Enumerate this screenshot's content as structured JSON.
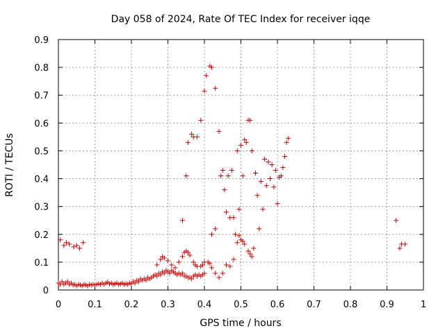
{
  "chart_data": {
    "type": "scatter",
    "title": "Day 058 of 2024, Rate Of TEC Index for receiver iqqe",
    "xlabel": "GPS time / hours",
    "ylabel": "ROTI / TECUs",
    "xlim": [
      0,
      1
    ],
    "ylim": [
      0,
      0.9
    ],
    "xticks": [
      "0",
      "0.1",
      "0.2",
      "0.3",
      "0.4",
      "0.5",
      "0.6",
      "0.7",
      "0.8",
      "0.9",
      "1"
    ],
    "yticks": [
      "0",
      "0.1",
      "0.2",
      "0.3",
      "0.4",
      "0.5",
      "0.6",
      "0.7",
      "0.8",
      "0.9"
    ],
    "grid": true,
    "marker": "+",
    "color": "#cc0000",
    "series": [
      {
        "name": "ROTI",
        "points": [
          [
            0.005,
            0.18
          ],
          [
            0.015,
            0.16
          ],
          [
            0.022,
            0.17
          ],
          [
            0.03,
            0.165
          ],
          [
            0.042,
            0.155
          ],
          [
            0.05,
            0.16
          ],
          [
            0.058,
            0.15
          ],
          [
            0.068,
            0.17
          ],
          [
            0.0,
            0.025
          ],
          [
            0.005,
            0.02
          ],
          [
            0.01,
            0.03
          ],
          [
            0.015,
            0.02
          ],
          [
            0.02,
            0.025
          ],
          [
            0.025,
            0.03
          ],
          [
            0.03,
            0.02
          ],
          [
            0.035,
            0.025
          ],
          [
            0.04,
            0.018
          ],
          [
            0.045,
            0.02
          ],
          [
            0.05,
            0.015
          ],
          [
            0.055,
            0.02
          ],
          [
            0.06,
            0.018
          ],
          [
            0.065,
            0.015
          ],
          [
            0.07,
            0.02
          ],
          [
            0.075,
            0.018
          ],
          [
            0.08,
            0.015
          ],
          [
            0.085,
            0.02
          ],
          [
            0.09,
            0.018
          ],
          [
            0.095,
            0.02
          ],
          [
            0.1,
            0.018
          ],
          [
            0.105,
            0.02
          ],
          [
            0.11,
            0.022
          ],
          [
            0.115,
            0.02
          ],
          [
            0.12,
            0.025
          ],
          [
            0.125,
            0.02
          ],
          [
            0.13,
            0.025
          ],
          [
            0.135,
            0.028
          ],
          [
            0.14,
            0.022
          ],
          [
            0.145,
            0.025
          ],
          [
            0.15,
            0.02
          ],
          [
            0.155,
            0.022
          ],
          [
            0.16,
            0.025
          ],
          [
            0.165,
            0.02
          ],
          [
            0.17,
            0.022
          ],
          [
            0.175,
            0.025
          ],
          [
            0.18,
            0.02
          ],
          [
            0.185,
            0.022
          ],
          [
            0.19,
            0.02
          ],
          [
            0.195,
            0.025
          ],
          [
            0.2,
            0.022
          ],
          [
            0.205,
            0.03
          ],
          [
            0.21,
            0.025
          ],
          [
            0.215,
            0.035
          ],
          [
            0.22,
            0.03
          ],
          [
            0.225,
            0.04
          ],
          [
            0.23,
            0.035
          ],
          [
            0.235,
            0.04
          ],
          [
            0.24,
            0.035
          ],
          [
            0.245,
            0.045
          ],
          [
            0.25,
            0.04
          ],
          [
            0.255,
            0.045
          ],
          [
            0.26,
            0.05
          ],
          [
            0.265,
            0.055
          ],
          [
            0.27,
            0.05
          ],
          [
            0.275,
            0.06
          ],
          [
            0.28,
            0.055
          ],
          [
            0.285,
            0.065
          ],
          [
            0.29,
            0.06
          ],
          [
            0.295,
            0.07
          ],
          [
            0.3,
            0.065
          ],
          [
            0.305,
            0.06
          ],
          [
            0.31,
            0.07
          ],
          [
            0.315,
            0.065
          ],
          [
            0.32,
            0.06
          ],
          [
            0.325,
            0.055
          ],
          [
            0.33,
            0.06
          ],
          [
            0.335,
            0.055
          ],
          [
            0.34,
            0.06
          ],
          [
            0.345,
            0.05
          ],
          [
            0.35,
            0.05
          ],
          [
            0.355,
            0.045
          ],
          [
            0.36,
            0.045
          ],
          [
            0.365,
            0.04
          ],
          [
            0.37,
            0.05
          ],
          [
            0.375,
            0.055
          ],
          [
            0.38,
            0.05
          ],
          [
            0.385,
            0.055
          ],
          [
            0.39,
            0.05
          ],
          [
            0.395,
            0.055
          ],
          [
            0.4,
            0.06
          ],
          [
            0.27,
            0.09
          ],
          [
            0.28,
            0.11
          ],
          [
            0.285,
            0.12
          ],
          [
            0.29,
            0.115
          ],
          [
            0.3,
            0.105
          ],
          [
            0.31,
            0.09
          ],
          [
            0.32,
            0.08
          ],
          [
            0.33,
            0.1
          ],
          [
            0.34,
            0.12
          ],
          [
            0.345,
            0.135
          ],
          [
            0.35,
            0.14
          ],
          [
            0.355,
            0.135
          ],
          [
            0.36,
            0.125
          ],
          [
            0.37,
            0.1
          ],
          [
            0.375,
            0.09
          ],
          [
            0.38,
            0.085
          ],
          [
            0.39,
            0.085
          ],
          [
            0.395,
            0.09
          ],
          [
            0.4,
            0.1
          ],
          [
            0.41,
            0.1
          ],
          [
            0.415,
            0.095
          ],
          [
            0.42,
            0.08
          ],
          [
            0.43,
            0.06
          ],
          [
            0.44,
            0.045
          ],
          [
            0.45,
            0.06
          ],
          [
            0.46,
            0.09
          ],
          [
            0.47,
            0.085
          ],
          [
            0.48,
            0.11
          ],
          [
            0.49,
            0.17
          ],
          [
            0.495,
            0.195
          ],
          [
            0.5,
            0.18
          ],
          [
            0.505,
            0.175
          ],
          [
            0.51,
            0.165
          ],
          [
            0.52,
            0.14
          ],
          [
            0.525,
            0.13
          ],
          [
            0.53,
            0.12
          ],
          [
            0.535,
            0.15
          ],
          [
            0.34,
            0.25
          ],
          [
            0.35,
            0.41
          ],
          [
            0.355,
            0.53
          ],
          [
            0.365,
            0.56
          ],
          [
            0.37,
            0.55
          ],
          [
            0.38,
            0.55
          ],
          [
            0.39,
            0.61
          ],
          [
            0.4,
            0.715
          ],
          [
            0.405,
            0.77
          ],
          [
            0.415,
            0.805
          ],
          [
            0.42,
            0.8
          ],
          [
            0.43,
            0.725
          ],
          [
            0.44,
            0.57
          ],
          [
            0.42,
            0.2
          ],
          [
            0.43,
            0.22
          ],
          [
            0.445,
            0.41
          ],
          [
            0.45,
            0.43
          ],
          [
            0.455,
            0.36
          ],
          [
            0.46,
            0.28
          ],
          [
            0.465,
            0.41
          ],
          [
            0.47,
            0.26
          ],
          [
            0.475,
            0.43
          ],
          [
            0.48,
            0.26
          ],
          [
            0.485,
            0.2
          ],
          [
            0.49,
            0.5
          ],
          [
            0.495,
            0.29
          ],
          [
            0.5,
            0.52
          ],
          [
            0.505,
            0.41
          ],
          [
            0.51,
            0.54
          ],
          [
            0.515,
            0.53
          ],
          [
            0.52,
            0.61
          ],
          [
            0.525,
            0.61
          ],
          [
            0.53,
            0.5
          ],
          [
            0.54,
            0.42
          ],
          [
            0.545,
            0.34
          ],
          [
            0.55,
            0.22
          ],
          [
            0.555,
            0.39
          ],
          [
            0.56,
            0.29
          ],
          [
            0.565,
            0.47
          ],
          [
            0.57,
            0.375
          ],
          [
            0.575,
            0.46
          ],
          [
            0.58,
            0.4
          ],
          [
            0.585,
            0.45
          ],
          [
            0.59,
            0.37
          ],
          [
            0.595,
            0.43
          ],
          [
            0.6,
            0.31
          ],
          [
            0.605,
            0.405
          ],
          [
            0.61,
            0.41
          ],
          [
            0.615,
            0.44
          ],
          [
            0.62,
            0.48
          ],
          [
            0.625,
            0.53
          ],
          [
            0.63,
            0.545
          ],
          [
            0.925,
            0.25
          ],
          [
            0.935,
            0.15
          ],
          [
            0.94,
            0.165
          ],
          [
            0.95,
            0.165
          ]
        ]
      }
    ]
  }
}
